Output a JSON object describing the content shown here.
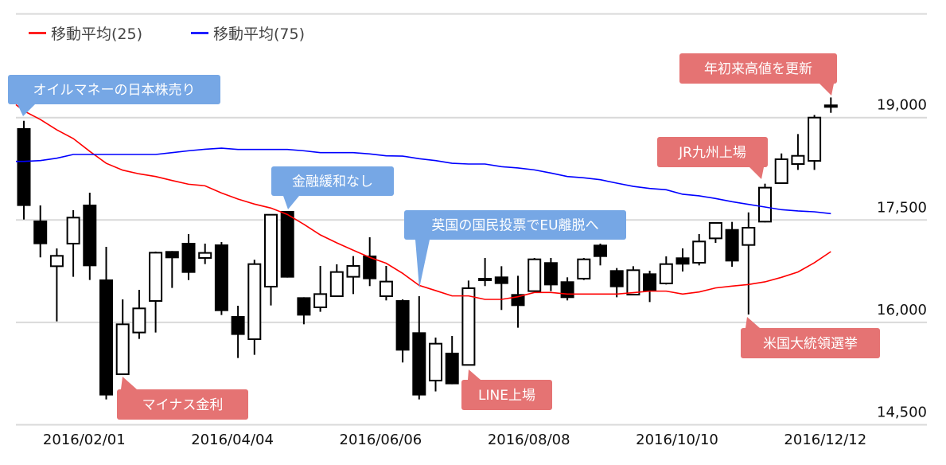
{
  "chart_data": {
    "type": "candlestick",
    "title": "",
    "xlabel": "",
    "ylabel": "",
    "ylim": [
      14500,
      19000
    ],
    "y_ticks": [
      19000,
      17500,
      16000,
      14500
    ],
    "y_tick_labels": [
      "19,000",
      "17,500",
      "16,000",
      "14,500"
    ],
    "x_tick_labels": [
      "2016/02/01",
      "2016/04/04",
      "2016/06/06",
      "2016/08/08",
      "2016/10/10",
      "2016/12/12"
    ],
    "x_tick_candle_index": [
      4,
      13,
      22,
      31,
      40,
      49
    ],
    "grid": true,
    "legend_position": "top-left",
    "colors": {
      "up_fill": "#ffffff",
      "down_fill": "#000000",
      "ma25": "#ff0000",
      "ma75": "#0000ff",
      "grid": "#d9d9d9",
      "annotation_blue": "#76a7e5",
      "annotation_red": "#e57373"
    },
    "candles": [
      {
        "o": 18845,
        "h": 18953,
        "l": 17507,
        "c": 17706
      },
      {
        "o": 17492,
        "h": 17713,
        "l": 16952,
        "c": 17146
      },
      {
        "o": 16823,
        "h": 17084,
        "l": 16015,
        "c": 16975
      },
      {
        "o": 17154,
        "h": 17643,
        "l": 16668,
        "c": 17535
      },
      {
        "o": 17725,
        "h": 17900,
        "l": 16621,
        "c": 16823
      },
      {
        "o": 16629,
        "h": 17107,
        "l": 14872,
        "c": 14930
      },
      {
        "o": 15241,
        "h": 16337,
        "l": 15241,
        "c": 15972
      },
      {
        "o": 15852,
        "h": 16477,
        "l": 15758,
        "c": 16205
      },
      {
        "o": 16314,
        "h": 17037,
        "l": 15852,
        "c": 17021
      },
      {
        "o": 17045,
        "h": 17045,
        "l": 16505,
        "c": 16940
      },
      {
        "o": 17165,
        "h": 17294,
        "l": 16621,
        "c": 16726
      },
      {
        "o": 16944,
        "h": 17154,
        "l": 16854,
        "c": 17018
      },
      {
        "o": 17142,
        "h": 17177,
        "l": 16108,
        "c": 16166
      },
      {
        "o": 16092,
        "h": 16244,
        "l": 15478,
        "c": 15817
      },
      {
        "o": 15754,
        "h": 16917,
        "l": 15525,
        "c": 16854
      },
      {
        "o": 16524,
        "h": 17577,
        "l": 16248,
        "c": 17577
      },
      {
        "o": 17632,
        "h": 17632,
        "l": 16656,
        "c": 16656
      },
      {
        "o": 16368,
        "h": 16368,
        "l": 15972,
        "c": 16100
      },
      {
        "o": 16221,
        "h": 16827,
        "l": 16155,
        "c": 16415
      },
      {
        "o": 16384,
        "h": 16851,
        "l": 16384,
        "c": 16738
      },
      {
        "o": 16668,
        "h": 16971,
        "l": 16415,
        "c": 16827
      },
      {
        "o": 16979,
        "h": 17247,
        "l": 16532,
        "c": 16633
      },
      {
        "o": 16384,
        "h": 16827,
        "l": 16322,
        "c": 16598
      },
      {
        "o": 16326,
        "h": 16337,
        "l": 15412,
        "c": 15587
      },
      {
        "o": 15855,
        "h": 16384,
        "l": 14872,
        "c": 14930
      },
      {
        "o": 15148,
        "h": 15778,
        "l": 14989,
        "c": 15688
      },
      {
        "o": 15556,
        "h": 15801,
        "l": 15094,
        "c": 15094
      },
      {
        "o": 15377,
        "h": 16613,
        "l": 15377,
        "c": 16501
      },
      {
        "o": 16625,
        "h": 16944,
        "l": 16532,
        "c": 16640
      },
      {
        "o": 16672,
        "h": 16823,
        "l": 16182,
        "c": 16563
      },
      {
        "o": 16415,
        "h": 16683,
        "l": 15922,
        "c": 16240
      },
      {
        "o": 16458,
        "h": 16944,
        "l": 16458,
        "c": 16924
      },
      {
        "o": 16882,
        "h": 16944,
        "l": 16458,
        "c": 16543
      },
      {
        "o": 16602,
        "h": 16660,
        "l": 16322,
        "c": 16357
      },
      {
        "o": 16641,
        "h": 16944,
        "l": 16621,
        "c": 16924
      },
      {
        "o": 17138,
        "h": 17154,
        "l": 16835,
        "c": 16959
      },
      {
        "o": 16765,
        "h": 16796,
        "l": 16368,
        "c": 16516
      },
      {
        "o": 16407,
        "h": 16823,
        "l": 16407,
        "c": 16765
      },
      {
        "o": 16718,
        "h": 16757,
        "l": 16298,
        "c": 16458
      },
      {
        "o": 16571,
        "h": 16967,
        "l": 16555,
        "c": 16854
      },
      {
        "o": 16952,
        "h": 17084,
        "l": 16746,
        "c": 16847
      },
      {
        "o": 16874,
        "h": 17294,
        "l": 16835,
        "c": 17185
      },
      {
        "o": 17231,
        "h": 17457,
        "l": 17165,
        "c": 17457
      },
      {
        "o": 17367,
        "h": 17472,
        "l": 16815,
        "c": 16893
      },
      {
        "o": 17134,
        "h": 17612,
        "l": 16116,
        "c": 17387
      },
      {
        "o": 17476,
        "h": 18032,
        "l": 17465,
        "c": 17974
      },
      {
        "o": 18040,
        "h": 18475,
        "l": 18028,
        "c": 18390
      },
      {
        "o": 18320,
        "h": 18759,
        "l": 18234,
        "c": 18440
      },
      {
        "o": 18366,
        "h": 19039,
        "l": 18234,
        "c": 19000
      },
      {
        "o": 19170,
        "h": 19295,
        "l": 19070,
        "c": 19180
      }
    ],
    "series": [
      {
        "name": "移動平均(25)",
        "color": "#ff0000",
        "values": [
          19097,
          18973,
          18821,
          18693,
          18506,
          18331,
          18230,
          18176,
          18137,
          18079,
          18024,
          18001,
          17896,
          17807,
          17733,
          17675,
          17581,
          17437,
          17282,
          17165,
          17057,
          16952,
          16866,
          16718,
          16543,
          16466,
          16388,
          16388,
          16337,
          16337,
          16376,
          16438,
          16438,
          16415,
          16415,
          16415,
          16415,
          16435,
          16458,
          16458,
          16415,
          16446,
          16505,
          16532,
          16555,
          16594,
          16660,
          16738,
          16874,
          17037
        ]
      },
      {
        "name": "移動平均(75)",
        "color": "#0000ff",
        "values": [
          18359,
          18370,
          18405,
          18460,
          18460,
          18460,
          18460,
          18460,
          18460,
          18487,
          18514,
          18537,
          18553,
          18534,
          18534,
          18534,
          18534,
          18514,
          18487,
          18487,
          18487,
          18468,
          18440,
          18436,
          18398,
          18370,
          18331,
          18320,
          18320,
          18281,
          18262,
          18234,
          18188,
          18137,
          18118,
          18090,
          18040,
          17993,
          17962,
          17943,
          17877,
          17854,
          17815,
          17768,
          17729,
          17690,
          17651,
          17632,
          17620,
          17593
        ]
      }
    ],
    "annotations": [
      {
        "text": "オイルマネーの日本株売り",
        "style": "blue",
        "candle_index": 0
      },
      {
        "text": "マイナス金利",
        "style": "red",
        "candle_index": 6
      },
      {
        "text": "金融緩和なし",
        "style": "blue",
        "candle_index": 16
      },
      {
        "text": "英国の国民投票でEU離脱へ",
        "style": "blue",
        "candle_index": 24
      },
      {
        "text": "LINE上場",
        "style": "red",
        "candle_index": 27
      },
      {
        "text": "米国大統領選挙",
        "style": "red",
        "candle_index": 44
      },
      {
        "text": "JR九州上場",
        "style": "red",
        "candle_index": 45
      },
      {
        "text": "年初来高値を更新",
        "style": "red",
        "candle_index": 49
      }
    ]
  }
}
